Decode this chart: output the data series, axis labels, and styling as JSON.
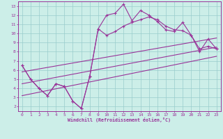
{
  "xlabel": "Windchill (Refroidissement éolien,°C)",
  "bg_color": "#cceee8",
  "grid_color": "#99cccc",
  "line_color": "#993399",
  "spine_color": "#993399",
  "xlim": [
    -0.5,
    23.5
  ],
  "ylim": [
    1.5,
    13.5
  ],
  "xticks": [
    0,
    1,
    2,
    3,
    4,
    5,
    6,
    7,
    8,
    9,
    10,
    11,
    12,
    13,
    14,
    15,
    16,
    17,
    18,
    19,
    20,
    21,
    22,
    23
  ],
  "yticks": [
    2,
    3,
    4,
    5,
    6,
    7,
    8,
    9,
    10,
    11,
    12,
    13
  ],
  "line1_x": [
    0,
    1,
    2,
    3,
    4,
    5,
    6,
    7,
    8,
    9,
    10,
    11,
    12,
    13,
    14,
    15,
    16,
    17,
    18,
    19,
    20,
    21,
    22,
    23
  ],
  "line1_y": [
    6.5,
    5.0,
    4.0,
    3.2,
    4.5,
    4.2,
    2.6,
    1.8,
    5.3,
    10.5,
    12.0,
    12.2,
    13.2,
    11.4,
    12.5,
    12.0,
    11.3,
    10.4,
    10.2,
    11.2,
    9.8,
    8.0,
    9.4,
    8.3
  ],
  "line2_x": [
    0,
    1,
    2,
    3,
    4,
    5,
    6,
    7,
    8,
    9,
    10,
    11,
    12,
    13,
    14,
    15,
    16,
    17,
    18,
    19,
    20,
    21,
    22,
    23
  ],
  "line2_y": [
    6.5,
    5.0,
    4.0,
    3.2,
    4.5,
    4.2,
    2.6,
    1.8,
    5.3,
    10.5,
    9.8,
    10.2,
    10.8,
    11.2,
    11.5,
    11.8,
    11.5,
    10.8,
    10.4,
    10.3,
    9.8,
    8.3,
    8.6,
    8.3
  ],
  "line3_x": [
    0,
    23
  ],
  "line3_y": [
    5.8,
    9.5
  ],
  "line4_x": [
    0,
    23
  ],
  "line4_y": [
    4.5,
    8.5
  ],
  "line5_x": [
    0,
    23
  ],
  "line5_y": [
    3.2,
    7.5
  ]
}
